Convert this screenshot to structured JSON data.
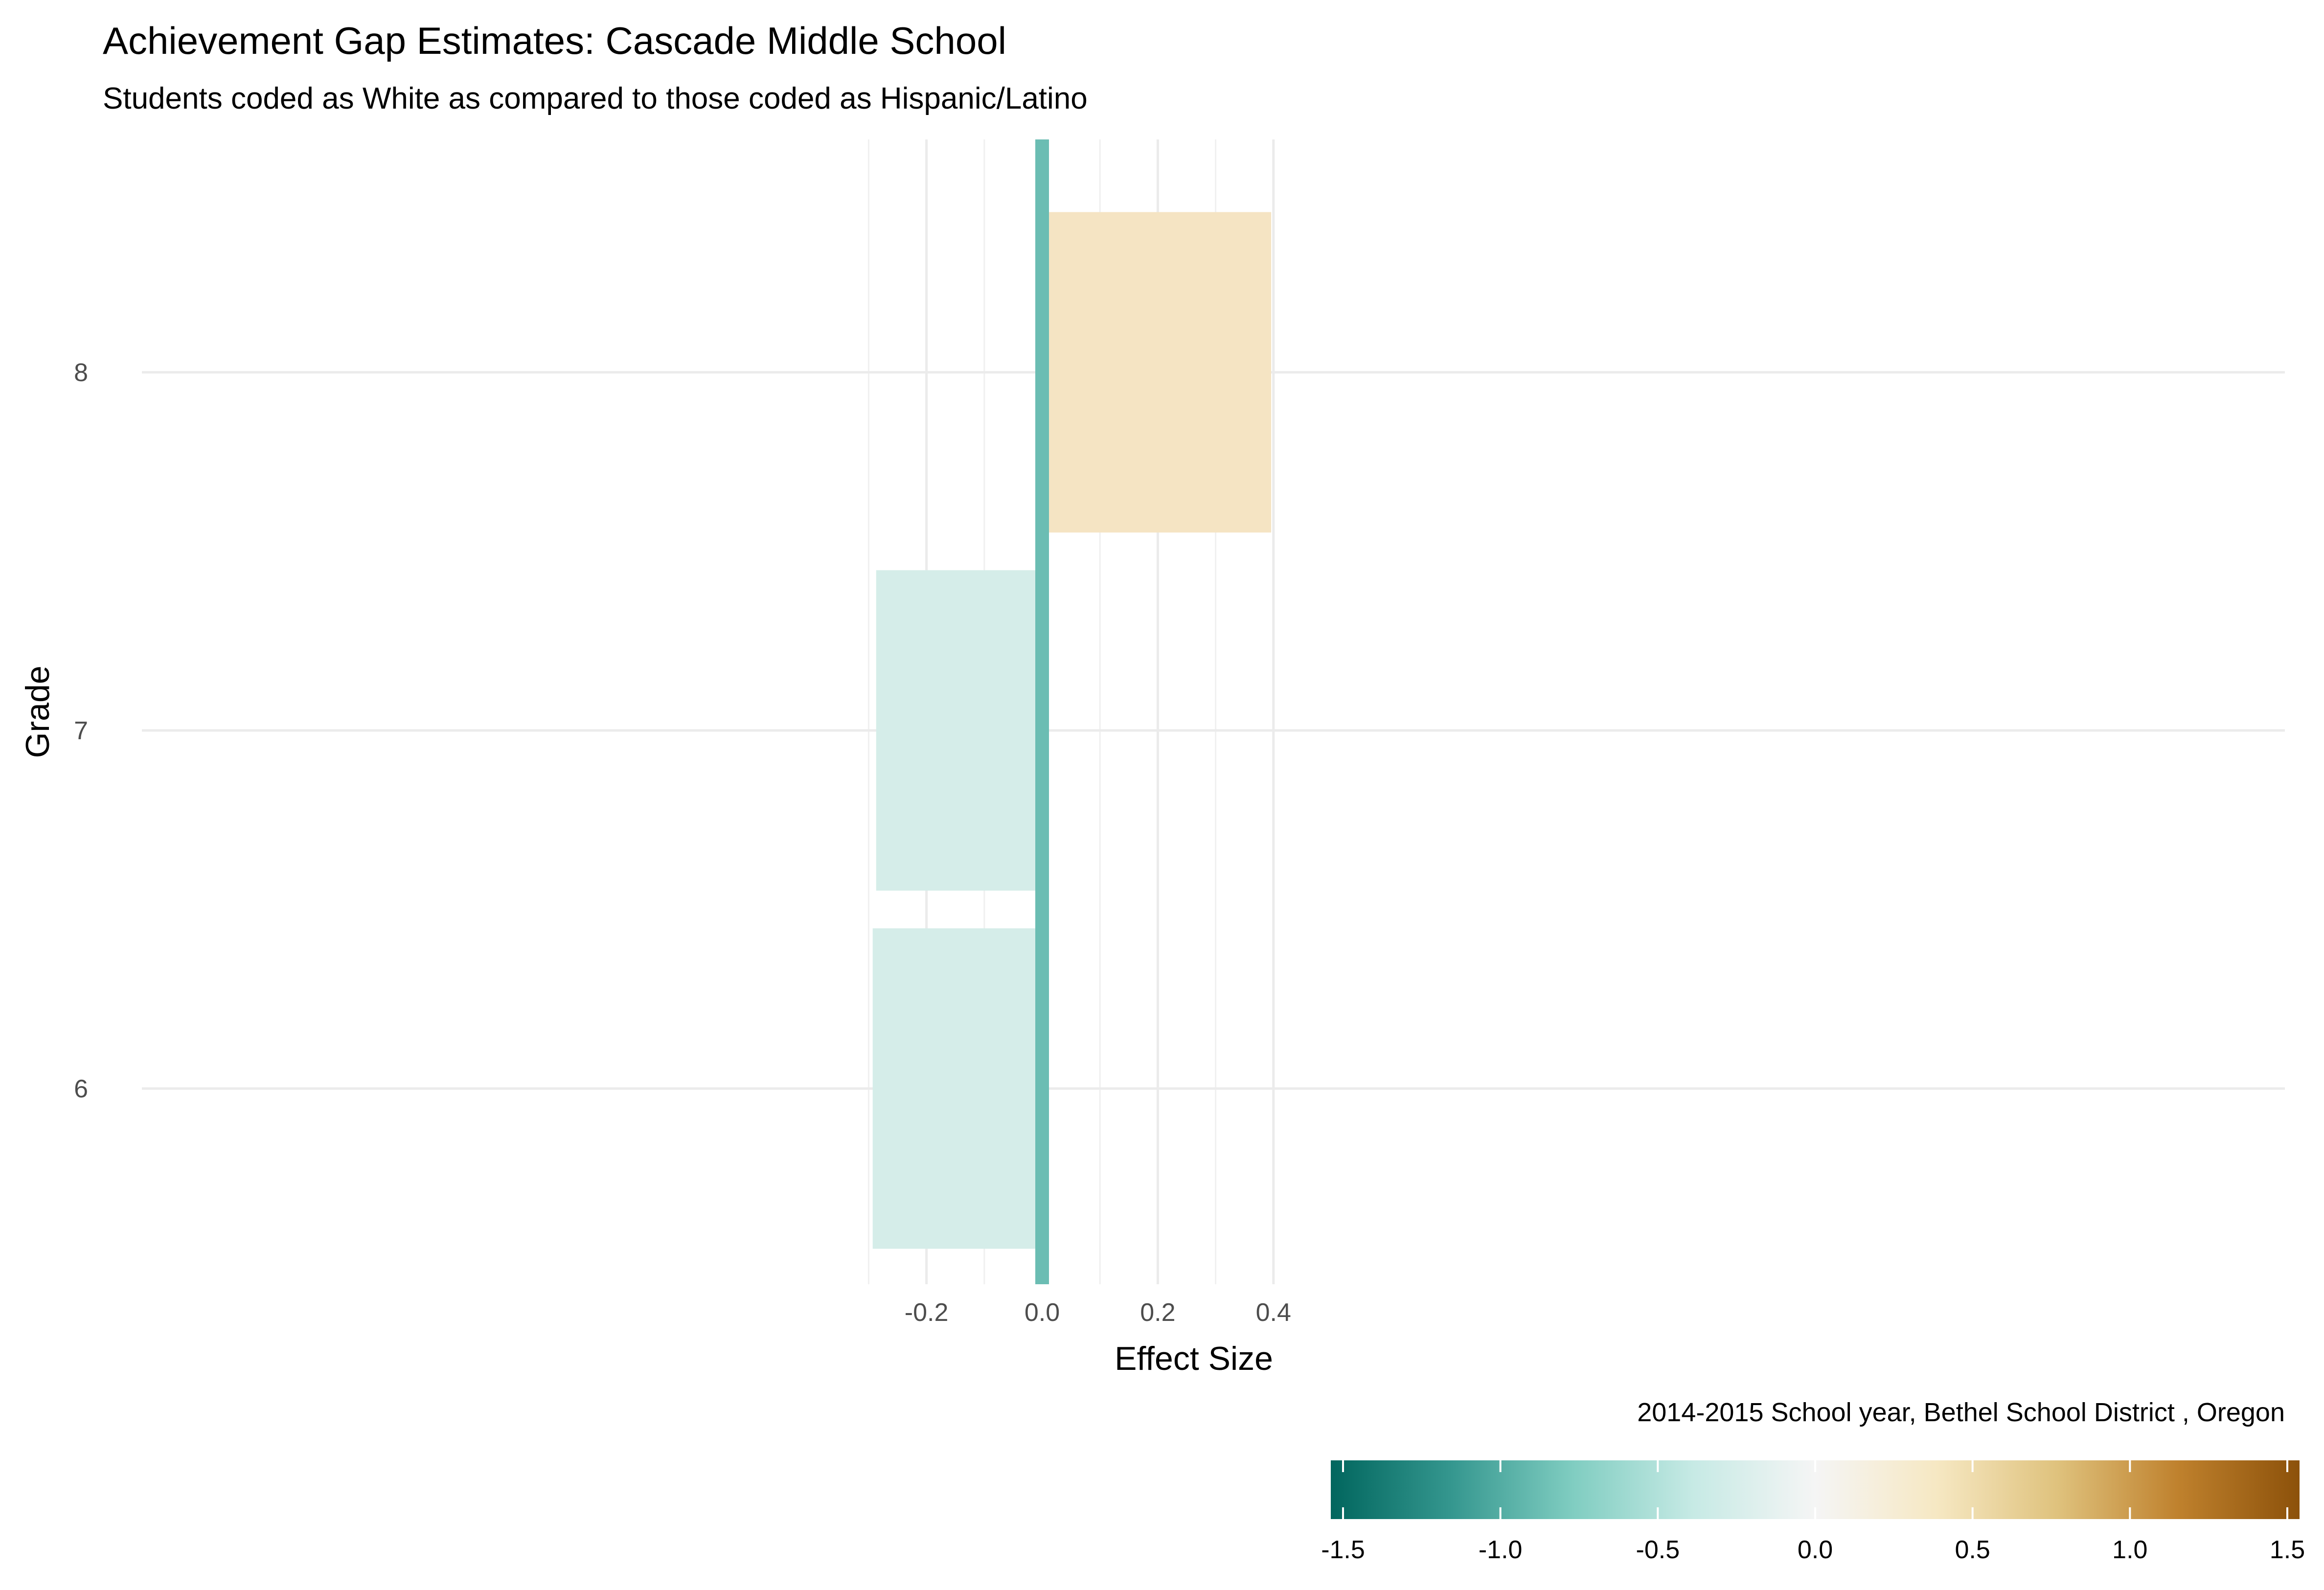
{
  "chart_data": {
    "type": "bar",
    "orientation": "horizontal",
    "title": "Achievement Gap Estimates: Cascade Middle School",
    "subtitle": "Students coded as White as compared to those coded as Hispanic/Latino",
    "xlabel": "Effect Size",
    "ylabel": "Grade",
    "caption": "2014-2015 School year,  Bethel School District , Oregon",
    "categories": [
      "6",
      "7",
      "8"
    ],
    "values": [
      -0.293,
      -0.287,
      0.396
    ],
    "bar_colors": [
      "#d5ede9",
      "#d5ede9",
      "#f5e4c3"
    ],
    "xlim": [
      -0.31,
      0.43
    ],
    "x_ticks": [
      -0.2,
      0.0,
      0.2,
      0.4
    ],
    "x_tick_labels": [
      "-0.2",
      "0.0",
      "0.2",
      "0.4"
    ],
    "reference_line": {
      "x": 0.0,
      "color": "#6bbdb3"
    },
    "grid": true,
    "legend": {
      "type": "colorbar",
      "position": "bottom-right",
      "range": [
        -1.5,
        1.5
      ],
      "ticks": [
        -1.5,
        -1.0,
        -0.5,
        0.0,
        0.5,
        1.0,
        1.5
      ],
      "tick_labels": [
        "-1.5",
        "-1.0",
        "-0.5",
        "0.0",
        "0.5",
        "1.0",
        "1.5"
      ],
      "palette": [
        "#01665e",
        "#35978f",
        "#80cdc1",
        "#c7eae5",
        "#f5f5f5",
        "#f6e8c3",
        "#dfc27d",
        "#bf812d",
        "#8c510a"
      ]
    }
  }
}
